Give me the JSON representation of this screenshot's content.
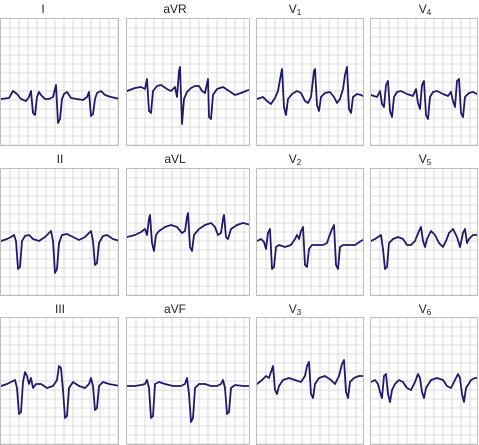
{
  "leads": [
    {
      "id": "I",
      "base": "I",
      "sub": ""
    },
    {
      "id": "aVR",
      "base": "aVR",
      "sub": ""
    },
    {
      "id": "V1",
      "base": "V",
      "sub": "1"
    },
    {
      "id": "V4",
      "base": "V",
      "sub": "4"
    },
    {
      "id": "II",
      "base": "II",
      "sub": ""
    },
    {
      "id": "aVL",
      "base": "aVL",
      "sub": ""
    },
    {
      "id": "V2",
      "base": "V",
      "sub": "2"
    },
    {
      "id": "V5",
      "base": "V",
      "sub": "5"
    },
    {
      "id": "III",
      "base": "III",
      "sub": ""
    },
    {
      "id": "aVF",
      "base": "aVF",
      "sub": ""
    },
    {
      "id": "V3",
      "base": "V",
      "sub": "3"
    },
    {
      "id": "V6",
      "base": "V",
      "sub": "6"
    }
  ],
  "colors": {
    "trace": "#1f1a6b",
    "grid": "#d0d0d0",
    "border": "#bdbdbd"
  }
}
